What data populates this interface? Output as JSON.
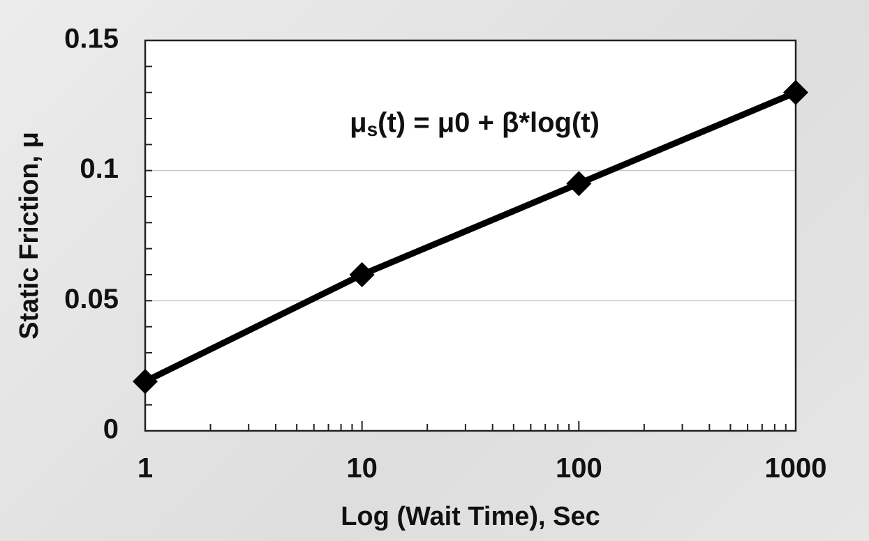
{
  "chart_data": {
    "type": "line",
    "x": [
      1,
      10,
      100,
      1000
    ],
    "values": [
      0.019,
      0.06,
      0.095,
      0.13
    ],
    "color": "#000000",
    "marker": "diamond",
    "xscale": "log",
    "xlim": [
      1,
      1000
    ],
    "xticks": [
      1,
      10,
      100,
      1000
    ],
    "ylim": [
      0,
      0.15
    ],
    "yticks": [
      0,
      0.05,
      0.1,
      0.15
    ],
    "grid": true,
    "xlabel": "Log (Wait Time), Sec",
    "ylabel": "Static Friction, μ",
    "annotation": [
      "μ",
      "s",
      "(t) = μ0 + β*log(t)"
    ]
  }
}
